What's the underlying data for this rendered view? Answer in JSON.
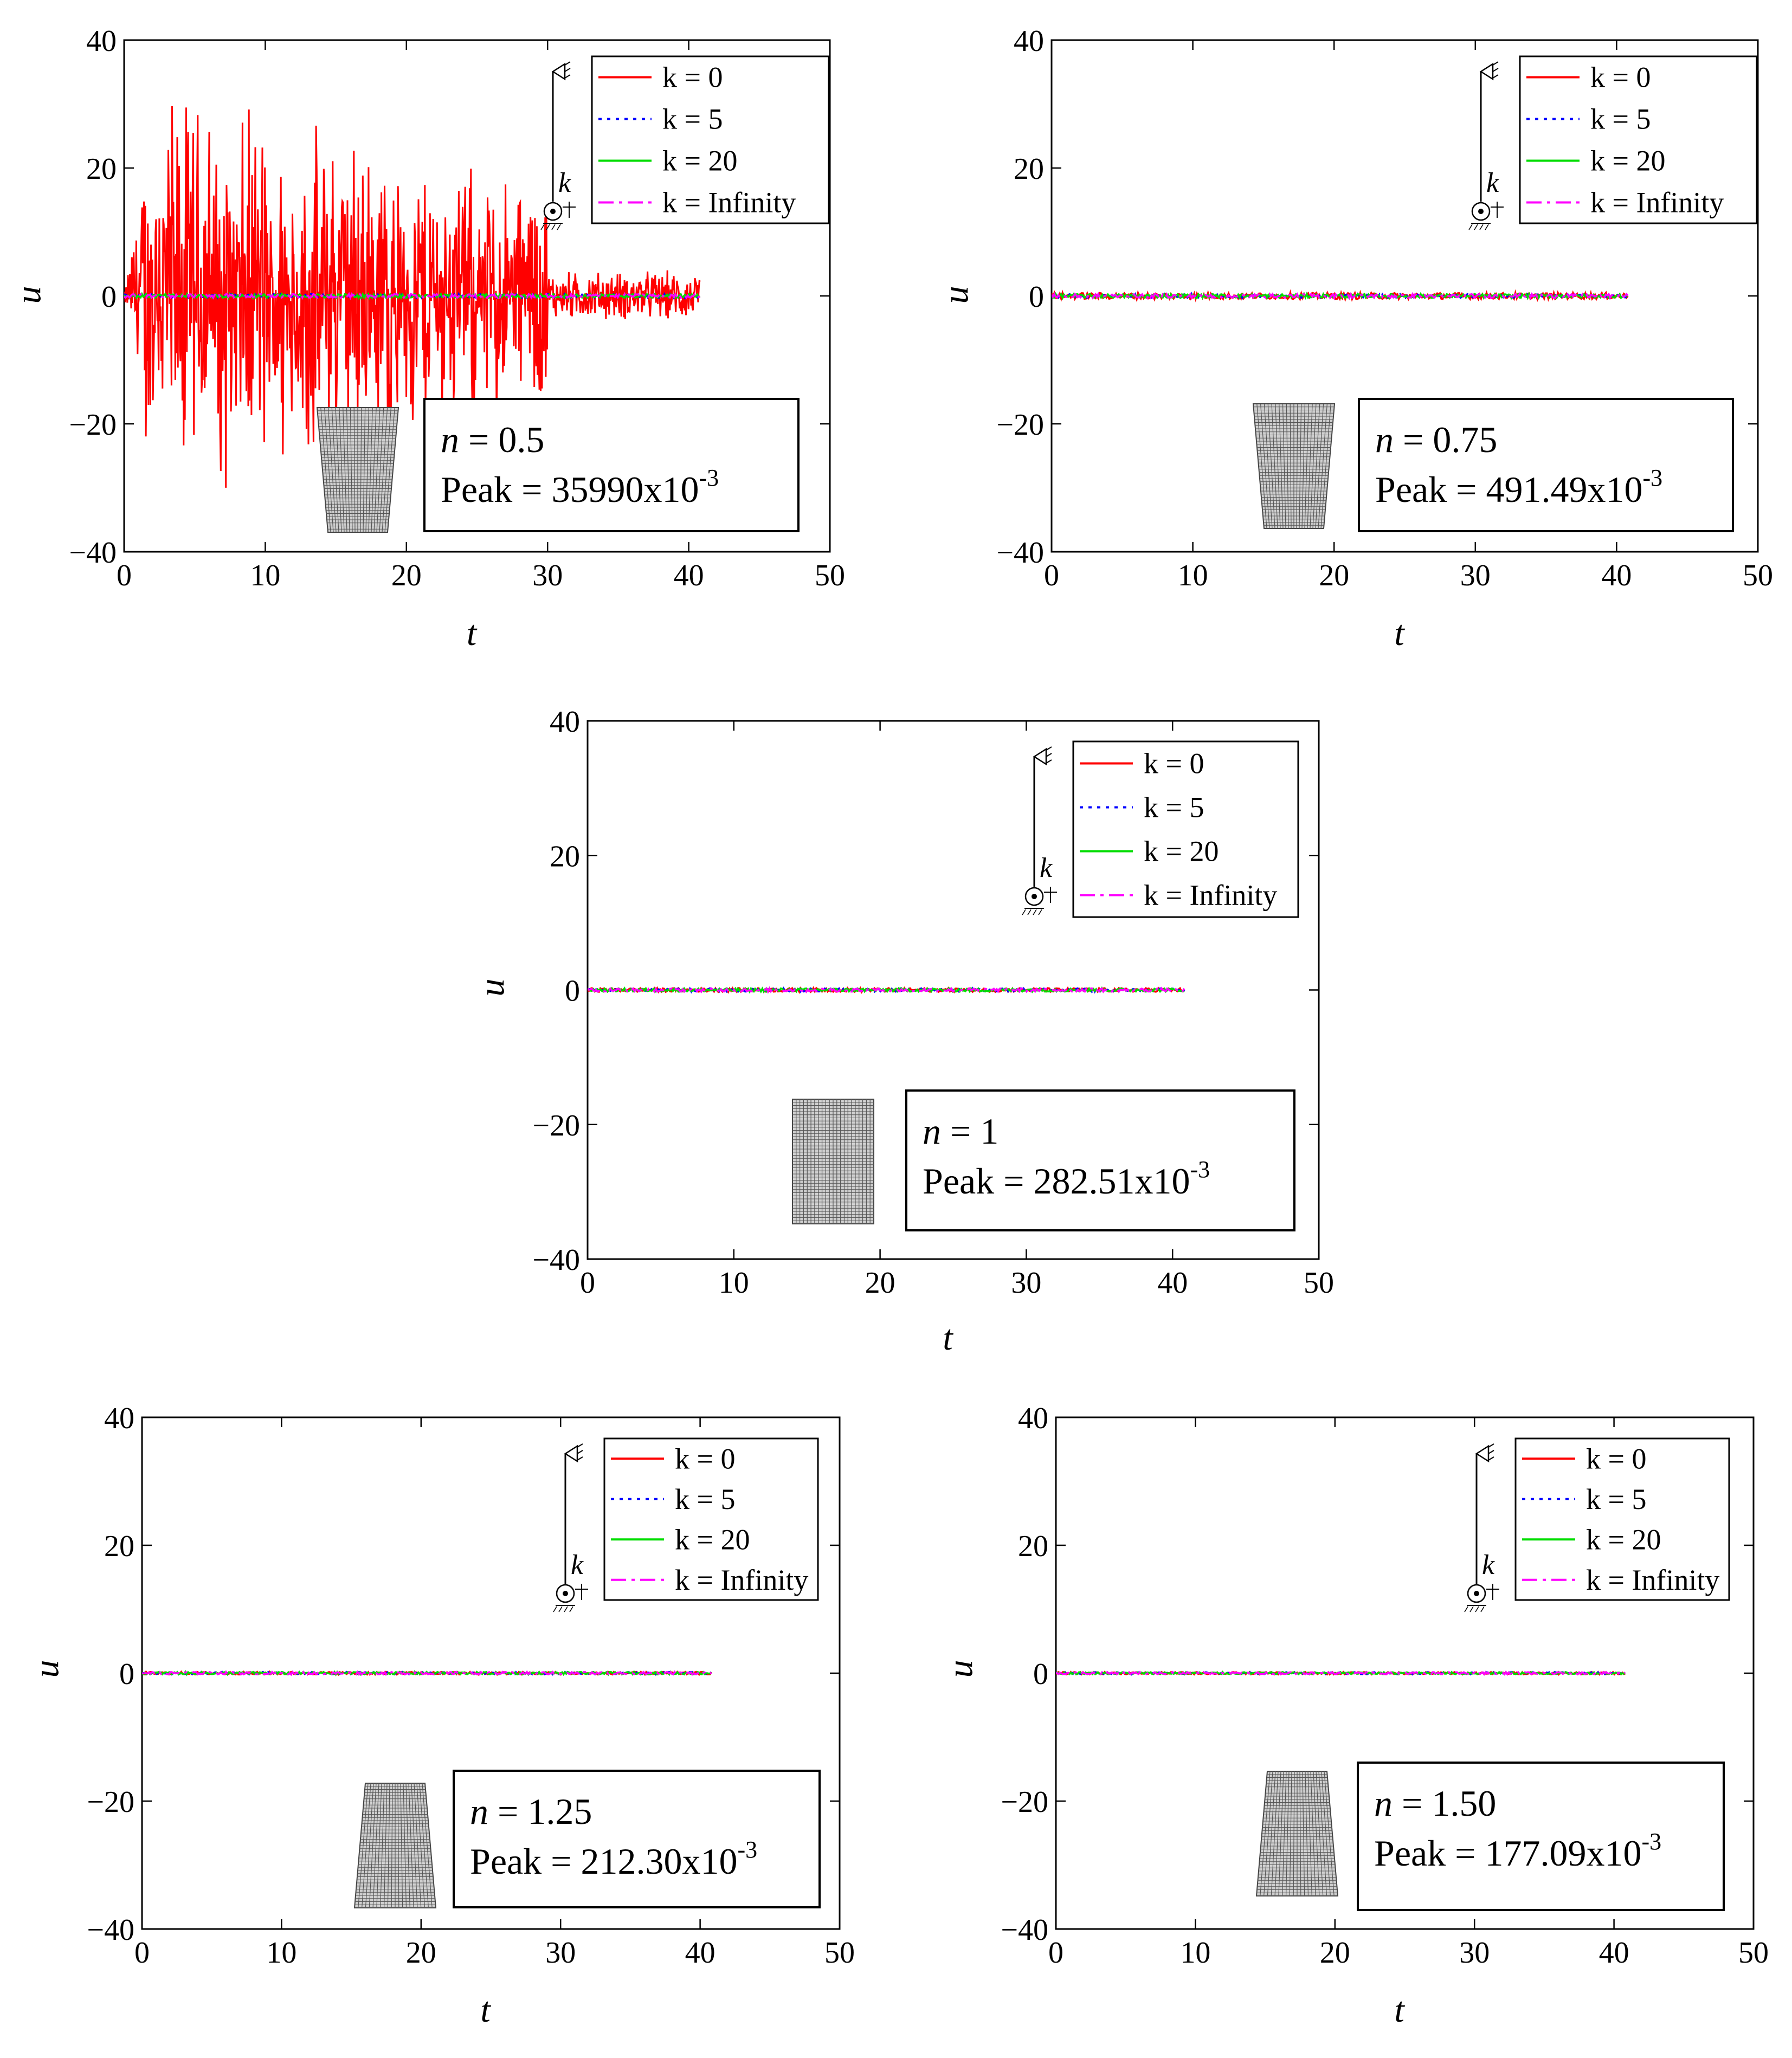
{
  "legend_labels": [
    "k = 0",
    "k = 5",
    "k = 20",
    "k = Infinity"
  ],
  "support_label": "k",
  "info_n_symbol": "n",
  "info_peak_prefix": "Peak = ",
  "info_peak_exp": "-3",
  "series_colors": {
    "k = 0": "#ff0000",
    "k = 5": "#0000ff",
    "k = 20": "#00dd00",
    "k = Infinity": "#ff00ff"
  },
  "chart_data": [
    {
      "type": "line",
      "n_label": "= 0.5",
      "peak_label": "35990x10",
      "peak": 35990,
      "peak_unit": "x10^-3",
      "xlabel": "t",
      "ylabel": "u",
      "xlim": [
        0,
        50
      ],
      "ylim": [
        -40,
        40
      ],
      "xticks": [
        "0",
        "10",
        "20",
        "30",
        "40",
        "50"
      ],
      "yticks": [
        "−40",
        "−20",
        "0",
        "20",
        "40"
      ],
      "series": [
        {
          "name": "k = 0",
          "style": "solid",
          "duration": 40.8,
          "peak": 35.99
        },
        {
          "name": "k = 5",
          "style": "dotted",
          "duration": 40.8,
          "peak": 0.3
        },
        {
          "name": "k = 20",
          "style": "solid",
          "duration": 40.8,
          "peak": 0.3
        },
        {
          "name": "k = Infinity",
          "style": "dashdot",
          "duration": 40.8,
          "peak": 0.3
        }
      ],
      "section_shape": "tapered-bottom"
    },
    {
      "type": "line",
      "n_label": "= 0.75",
      "peak_label": "491.49x10",
      "peak": 491.49,
      "peak_unit": "x10^-3",
      "xlabel": "t",
      "ylabel": "u",
      "xlim": [
        0,
        50
      ],
      "ylim": [
        -40,
        40
      ],
      "xticks": [
        "0",
        "10",
        "20",
        "30",
        "40",
        "50"
      ],
      "yticks": [
        "−40",
        "−20",
        "0",
        "20",
        "40"
      ],
      "series": [
        {
          "name": "k = 0",
          "style": "solid",
          "duration": 40.8,
          "peak": 0.49
        },
        {
          "name": "k = 5",
          "style": "dotted",
          "duration": 40.8,
          "peak": 0.3
        },
        {
          "name": "k = 20",
          "style": "solid",
          "duration": 40.8,
          "peak": 0.3
        },
        {
          "name": "k = Infinity",
          "style": "dashdot",
          "duration": 40.8,
          "peak": 0.3
        }
      ],
      "section_shape": "tapered-bottom"
    },
    {
      "type": "line",
      "n_label": "= 1",
      "peak_label": "282.51x10",
      "peak": 282.51,
      "peak_unit": "x10^-3",
      "xlabel": "t",
      "ylabel": "u",
      "xlim": [
        0,
        50
      ],
      "ylim": [
        -40,
        40
      ],
      "xticks": [
        "0",
        "10",
        "20",
        "30",
        "40",
        "50"
      ],
      "yticks": [
        "−40",
        "−20",
        "0",
        "20",
        "40"
      ],
      "series": [
        {
          "name": "k = 0",
          "style": "solid",
          "duration": 40.8,
          "peak": 0.28
        },
        {
          "name": "k = 5",
          "style": "dotted",
          "duration": 40.8,
          "peak": 0.25
        },
        {
          "name": "k = 20",
          "style": "solid",
          "duration": 40.8,
          "peak": 0.25
        },
        {
          "name": "k = Infinity",
          "style": "dashdot",
          "duration": 40.8,
          "peak": 0.25
        }
      ],
      "section_shape": "uniform"
    },
    {
      "type": "line",
      "n_label": "= 1.25",
      "peak_label": "212.30x10",
      "peak": 212.3,
      "peak_unit": "x10^-3",
      "xlabel": "t",
      "ylabel": "u",
      "xlim": [
        0,
        50
      ],
      "ylim": [
        -40,
        40
      ],
      "xticks": [
        "0",
        "10",
        "20",
        "30",
        "40",
        "50"
      ],
      "yticks": [
        "−40",
        "−20",
        "0",
        "20",
        "40"
      ],
      "series": [
        {
          "name": "k = 0",
          "style": "solid",
          "duration": 40.8,
          "peak": 0.21
        },
        {
          "name": "k = 5",
          "style": "dotted",
          "duration": 40.8,
          "peak": 0.2
        },
        {
          "name": "k = 20",
          "style": "solid",
          "duration": 40.8,
          "peak": 0.2
        },
        {
          "name": "k = Infinity",
          "style": "dashdot",
          "duration": 40.8,
          "peak": 0.2
        }
      ],
      "section_shape": "tapered-top"
    },
    {
      "type": "line",
      "n_label": "= 1.50",
      "peak_label": "177.09x10",
      "peak": 177.09,
      "peak_unit": "x10^-3",
      "xlabel": "t",
      "ylabel": "u",
      "xlim": [
        0,
        50
      ],
      "ylim": [
        -40,
        40
      ],
      "xticks": [
        "0",
        "10",
        "20",
        "30",
        "40",
        "50"
      ],
      "yticks": [
        "−40",
        "−20",
        "0",
        "20",
        "40"
      ],
      "series": [
        {
          "name": "k = 0",
          "style": "solid",
          "duration": 40.8,
          "peak": 0.18
        },
        {
          "name": "k = 5",
          "style": "dotted",
          "duration": 40.8,
          "peak": 0.17
        },
        {
          "name": "k = 20",
          "style": "solid",
          "duration": 40.8,
          "peak": 0.17
        },
        {
          "name": "k = Infinity",
          "style": "dashdot",
          "duration": 40.8,
          "peak": 0.17
        }
      ],
      "section_shape": "tapered-top"
    }
  ]
}
